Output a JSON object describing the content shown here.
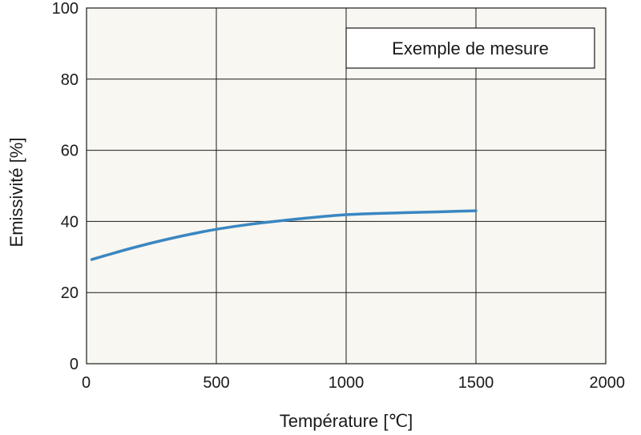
{
  "chart_data": {
    "type": "line",
    "title": "",
    "xlabel": "Température [℃]",
    "ylabel": "Emissivité [%]",
    "xlim": [
      0,
      2000
    ],
    "ylim": [
      0,
      100
    ],
    "x_ticks": [
      "0",
      "500",
      "1000",
      "1500",
      "2000"
    ],
    "y_ticks": [
      "0",
      "20",
      "40",
      "60",
      "80",
      "100"
    ],
    "grid": true,
    "legend_placement": "top-right",
    "colors": {
      "plot_background": "#f9f7f1",
      "grid": "#1a1a1a",
      "line": "#3a87c2"
    },
    "annotation": "Exemple de mesure",
    "series": [
      {
        "x": [
          20,
          100,
          200,
          300,
          400,
          500,
          600,
          700,
          800,
          900,
          1000,
          1100,
          1200,
          1300,
          1400,
          1500
        ],
        "values": [
          29.3,
          31.0,
          33.0,
          34.8,
          36.4,
          37.8,
          38.9,
          39.8,
          40.6,
          41.3,
          41.9,
          42.2,
          42.4,
          42.6,
          42.8,
          43.0
        ]
      }
    ]
  }
}
